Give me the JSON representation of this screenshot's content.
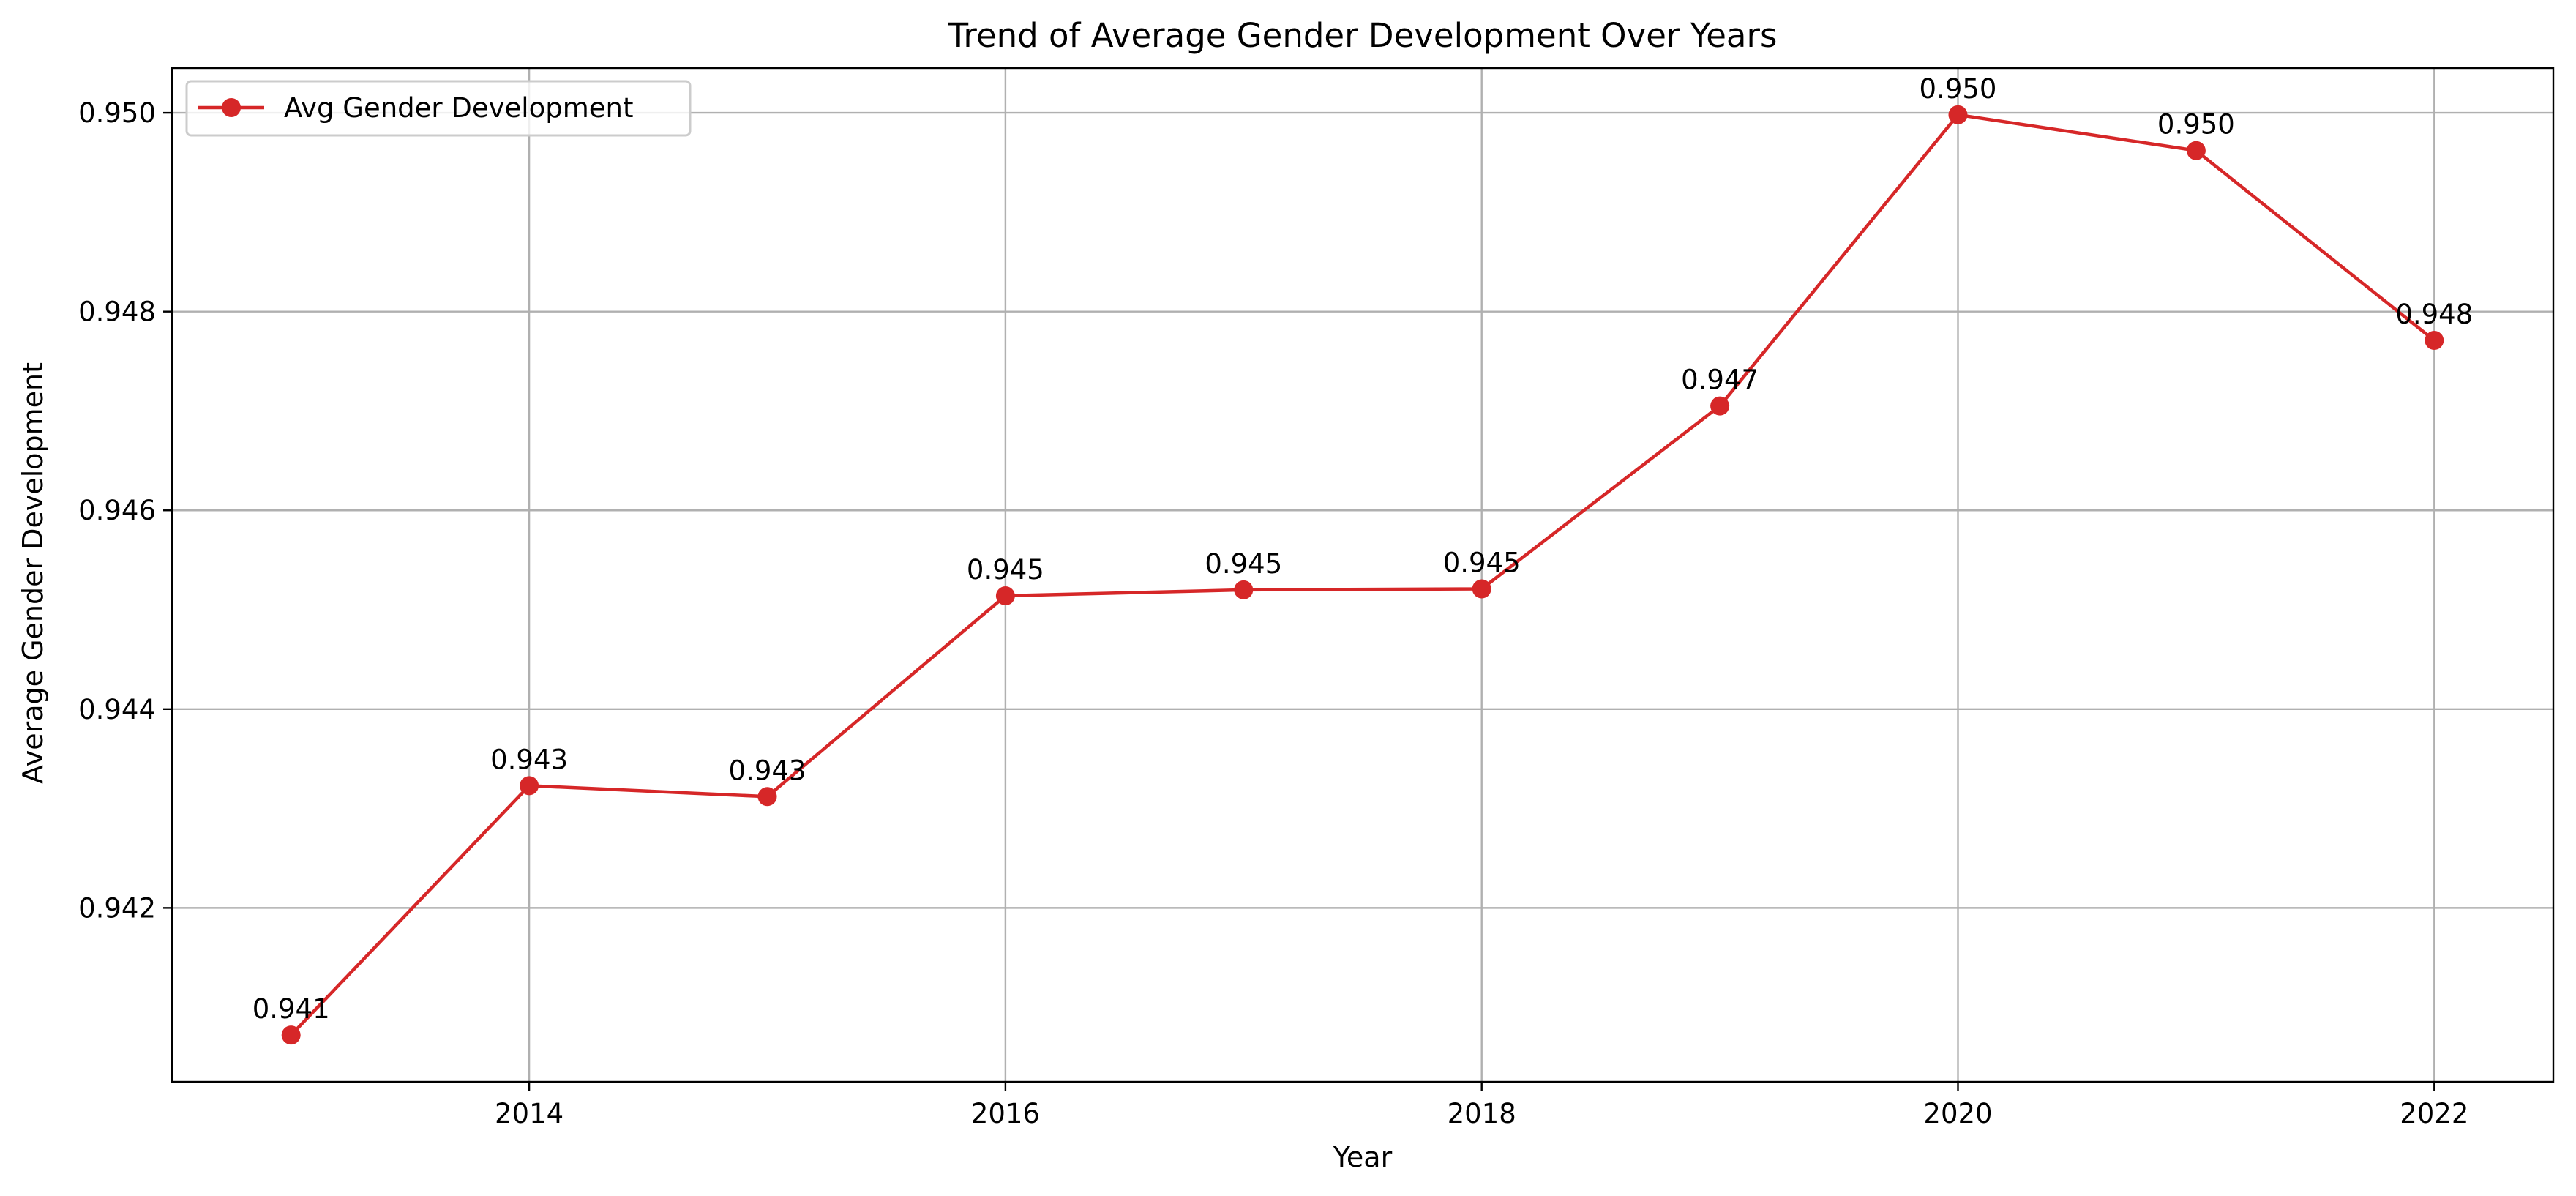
{
  "chart_data": {
    "type": "line",
    "title": "Trend of Average Gender Development Over Years",
    "xlabel": "Year",
    "ylabel": "Average Gender Development",
    "xlim": [
      2012.5,
      2022.5
    ],
    "ylim": [
      0.94025,
      0.95045
    ],
    "xticks": [
      2014,
      2016,
      2018,
      2020,
      2022
    ],
    "yticks": [
      0.942,
      0.944,
      0.946,
      0.948,
      0.95
    ],
    "ytick_labels": [
      "0.942",
      "0.944",
      "0.946",
      "0.948",
      "0.950"
    ],
    "grid": true,
    "legend_position": "upper-left",
    "series": [
      {
        "name": "Avg Gender Development",
        "color": "#d62728",
        "marker": "circle",
        "x": [
          2013,
          2014,
          2015,
          2016,
          2017,
          2018,
          2019,
          2020,
          2021,
          2022
        ],
        "values": [
          0.94072,
          0.94323,
          0.94312,
          0.94514,
          0.9452,
          0.94521,
          0.94705,
          0.94998,
          0.94962,
          0.94771
        ],
        "data_labels": [
          "0.941",
          "0.943",
          "0.943",
          "0.945",
          "0.945",
          "0.945",
          "0.947",
          "0.950",
          "0.950",
          "0.948"
        ]
      }
    ]
  }
}
